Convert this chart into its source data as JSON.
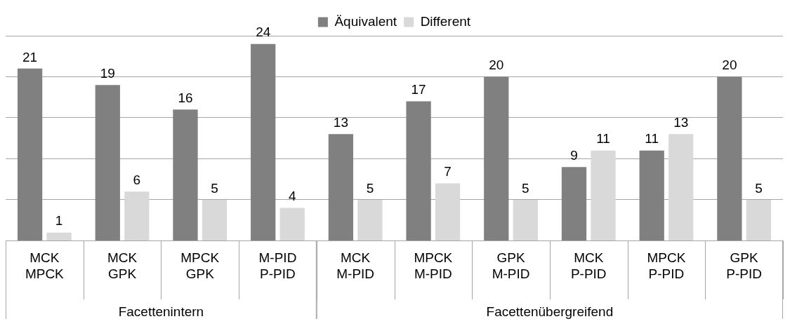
{
  "chart_data": {
    "type": "bar",
    "categories": [
      "MCK\nMPCK",
      "MCK\nGPK",
      "MPCK\nGPK",
      "M-PID\nP-PID",
      "MCK\nM-PID",
      "MPCK\nM-PID",
      "GPK\nM-PID",
      "MCK\nP-PID",
      "MPCK\nP-PID",
      "GPK\nP-PID"
    ],
    "series": [
      {
        "name": "Äquivalent",
        "color": "#808080",
        "values": [
          21,
          19,
          16,
          24,
          13,
          17,
          20,
          9,
          11,
          20
        ]
      },
      {
        "name": "Different",
        "color": "#d9d9d9",
        "values": [
          1,
          6,
          5,
          4,
          5,
          7,
          5,
          11,
          13,
          5
        ]
      }
    ],
    "annotations": [
      "Facettenintern",
      "Facettenübergreifend"
    ],
    "ylim": [
      0,
      25
    ],
    "yticks": [
      0,
      5,
      10,
      15,
      20,
      25
    ],
    "grid": "y",
    "tick_labels": "x",
    "legend": "top",
    "data_labels": true
  }
}
